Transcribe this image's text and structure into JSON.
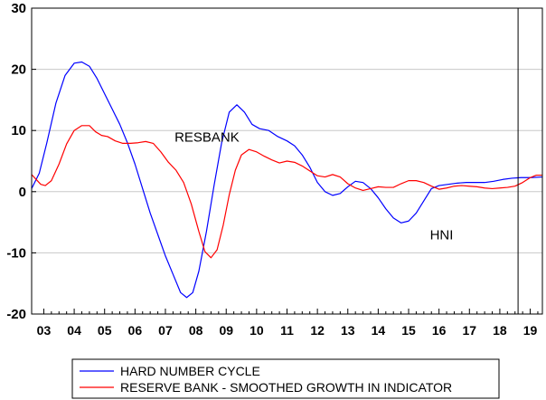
{
  "chart_data": {
    "type": "line",
    "title": "",
    "xlabel": "",
    "ylabel": "",
    "xlim": [
      2002.6,
      2019.4
    ],
    "ylim": [
      -20,
      30
    ],
    "yticks": [
      -20,
      -10,
      0,
      10,
      20,
      30
    ],
    "ytick_labels": [
      "-20",
      "-10",
      "0",
      "10",
      "20",
      "30"
    ],
    "xtick_labels": [
      {
        "x": 2003,
        "label": "03"
      },
      {
        "x": 2004,
        "label": "04"
      },
      {
        "x": 2005,
        "label": "05"
      },
      {
        "x": 2006,
        "label": "06"
      },
      {
        "x": 2007,
        "label": "07"
      },
      {
        "x": 2008,
        "label": "08"
      },
      {
        "x": 2009,
        "label": "09"
      },
      {
        "x": 2010,
        "label": "10"
      },
      {
        "x": 2011,
        "label": "11"
      },
      {
        "x": 2012,
        "label": "12"
      },
      {
        "x": 2013,
        "label": "13"
      },
      {
        "x": 2014,
        "label": "14"
      },
      {
        "x": 2015,
        "label": "15"
      },
      {
        "x": 2016,
        "label": "16"
      },
      {
        "x": 2017,
        "label": "17"
      },
      {
        "x": 2018,
        "label": "18"
      },
      {
        "x": 2019,
        "label": "19"
      }
    ],
    "grid": {
      "horizontal": true,
      "vertical": false
    },
    "vertical_marker_x": 2018.6,
    "annotations": [
      {
        "text": "RESBANK",
        "x": 2007.3,
        "y": 8.2
      },
      {
        "text": "HNI",
        "x": 2015.7,
        "y": -7.8
      }
    ],
    "legend_position": "bottom",
    "series": [
      {
        "name": "HARD NUMBER CYCLE",
        "color": "#0000ff",
        "points": [
          [
            2002.6,
            0.5
          ],
          [
            2002.85,
            3.0
          ],
          [
            2003.1,
            8.0
          ],
          [
            2003.4,
            14.5
          ],
          [
            2003.7,
            19.0
          ],
          [
            2004.0,
            21.0
          ],
          [
            2004.25,
            21.2
          ],
          [
            2004.5,
            20.5
          ],
          [
            2004.75,
            18.5
          ],
          [
            2005.0,
            16.0
          ],
          [
            2005.25,
            13.5
          ],
          [
            2005.5,
            11.0
          ],
          [
            2005.75,
            8.0
          ],
          [
            2006.0,
            4.5
          ],
          [
            2006.25,
            0.5
          ],
          [
            2006.5,
            -3.5
          ],
          [
            2006.75,
            -7.0
          ],
          [
            2007.0,
            -10.5
          ],
          [
            2007.25,
            -13.5
          ],
          [
            2007.5,
            -16.5
          ],
          [
            2007.7,
            -17.3
          ],
          [
            2007.9,
            -16.5
          ],
          [
            2008.1,
            -13.0
          ],
          [
            2008.35,
            -6.5
          ],
          [
            2008.6,
            1.0
          ],
          [
            2008.85,
            8.0
          ],
          [
            2009.1,
            13.0
          ],
          [
            2009.35,
            14.2
          ],
          [
            2009.6,
            13.0
          ],
          [
            2009.85,
            11.0
          ],
          [
            2010.1,
            10.3
          ],
          [
            2010.4,
            10.0
          ],
          [
            2010.7,
            9.0
          ],
          [
            2011.0,
            8.3
          ],
          [
            2011.25,
            7.5
          ],
          [
            2011.5,
            6.0
          ],
          [
            2011.75,
            4.0
          ],
          [
            2012.0,
            1.5
          ],
          [
            2012.25,
            0.0
          ],
          [
            2012.5,
            -0.6
          ],
          [
            2012.75,
            -0.3
          ],
          [
            2013.0,
            0.8
          ],
          [
            2013.25,
            1.7
          ],
          [
            2013.5,
            1.5
          ],
          [
            2013.75,
            0.5
          ],
          [
            2014.0,
            -1.0
          ],
          [
            2014.25,
            -2.8
          ],
          [
            2014.5,
            -4.3
          ],
          [
            2014.75,
            -5.1
          ],
          [
            2015.0,
            -4.8
          ],
          [
            2015.25,
            -3.5
          ],
          [
            2015.5,
            -1.5
          ],
          [
            2015.75,
            0.5
          ],
          [
            2016.0,
            1.0
          ],
          [
            2016.3,
            1.2
          ],
          [
            2016.6,
            1.4
          ],
          [
            2016.9,
            1.5
          ],
          [
            2017.2,
            1.5
          ],
          [
            2017.5,
            1.5
          ],
          [
            2017.8,
            1.7
          ],
          [
            2018.1,
            2.0
          ],
          [
            2018.4,
            2.2
          ],
          [
            2018.7,
            2.3
          ],
          [
            2019.0,
            2.3
          ],
          [
            2019.4,
            2.4
          ]
        ]
      },
      {
        "name": "RESERVE BANK - SMOOTHED GROWTH IN INDICATOR",
        "color": "#ff0000",
        "points": [
          [
            2002.6,
            2.8
          ],
          [
            2002.75,
            2.0
          ],
          [
            2002.9,
            1.2
          ],
          [
            2003.05,
            1.0
          ],
          [
            2003.25,
            1.8
          ],
          [
            2003.5,
            4.5
          ],
          [
            2003.75,
            7.8
          ],
          [
            2004.0,
            10.0
          ],
          [
            2004.25,
            10.8
          ],
          [
            2004.5,
            10.8
          ],
          [
            2004.7,
            9.8
          ],
          [
            2004.9,
            9.2
          ],
          [
            2005.1,
            9.0
          ],
          [
            2005.35,
            8.3
          ],
          [
            2005.6,
            7.9
          ],
          [
            2005.85,
            7.9
          ],
          [
            2006.1,
            8.0
          ],
          [
            2006.35,
            8.2
          ],
          [
            2006.6,
            7.9
          ],
          [
            2006.85,
            6.5
          ],
          [
            2007.1,
            4.8
          ],
          [
            2007.35,
            3.5
          ],
          [
            2007.6,
            1.5
          ],
          [
            2007.85,
            -2.0
          ],
          [
            2008.1,
            -6.5
          ],
          [
            2008.3,
            -9.8
          ],
          [
            2008.5,
            -10.8
          ],
          [
            2008.7,
            -9.5
          ],
          [
            2008.9,
            -5.5
          ],
          [
            2009.1,
            -0.5
          ],
          [
            2009.3,
            3.5
          ],
          [
            2009.5,
            6.0
          ],
          [
            2009.75,
            6.9
          ],
          [
            2010.0,
            6.5
          ],
          [
            2010.25,
            5.8
          ],
          [
            2010.5,
            5.2
          ],
          [
            2010.75,
            4.7
          ],
          [
            2011.0,
            5.0
          ],
          [
            2011.25,
            4.8
          ],
          [
            2011.5,
            4.2
          ],
          [
            2011.75,
            3.4
          ],
          [
            2012.0,
            2.6
          ],
          [
            2012.25,
            2.4
          ],
          [
            2012.5,
            2.8
          ],
          [
            2012.75,
            2.4
          ],
          [
            2013.0,
            1.3
          ],
          [
            2013.25,
            0.6
          ],
          [
            2013.5,
            0.2
          ],
          [
            2013.75,
            0.5
          ],
          [
            2014.0,
            0.8
          ],
          [
            2014.25,
            0.7
          ],
          [
            2014.5,
            0.7
          ],
          [
            2014.75,
            1.3
          ],
          [
            2015.0,
            1.8
          ],
          [
            2015.25,
            1.8
          ],
          [
            2015.5,
            1.5
          ],
          [
            2015.75,
            0.9
          ],
          [
            2016.0,
            0.4
          ],
          [
            2016.25,
            0.6
          ],
          [
            2016.5,
            0.9
          ],
          [
            2016.75,
            1.0
          ],
          [
            2017.0,
            0.9
          ],
          [
            2017.25,
            0.8
          ],
          [
            2017.5,
            0.6
          ],
          [
            2017.75,
            0.5
          ],
          [
            2018.0,
            0.6
          ],
          [
            2018.25,
            0.7
          ],
          [
            2018.5,
            0.9
          ],
          [
            2018.75,
            1.5
          ],
          [
            2019.0,
            2.3
          ],
          [
            2019.2,
            2.7
          ],
          [
            2019.4,
            2.7
          ]
        ]
      }
    ]
  }
}
